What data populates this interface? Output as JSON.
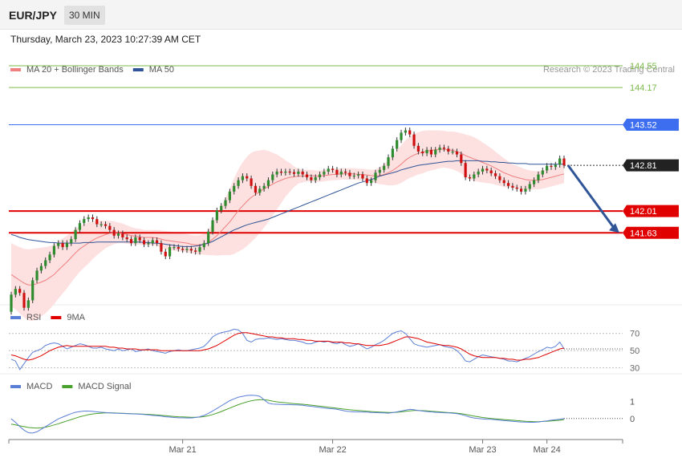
{
  "header": {
    "symbol": "EUR/JPY",
    "timeframe": "30 MIN",
    "datetime": "Thursday, March 23, 2023 10:27:39 AM CET"
  },
  "credit": "Research © 2023 Trading Central",
  "colors": {
    "bull": "#2e8b2e",
    "bear": "#d01010",
    "ma20": "#f08080",
    "band": "#fde0e0",
    "ma50": "#2f5597",
    "support": "#e00000",
    "resistance": "#3d6ef0",
    "target": "#7cbb4a",
    "rsi": "#5b7fd6",
    "rsi_ma": "#e00000",
    "macd": "#5b7fd6",
    "macd_signal": "#4aa02c",
    "arrow": "#2f5597",
    "current_label": "#222222"
  },
  "chart_data": [
    {
      "type": "candlestick",
      "legend": [
        {
          "name": "MA 20 + Bollinger Bands",
          "color_key": "ma20"
        },
        {
          "name": "MA 50",
          "color_key": "ma50"
        }
      ],
      "ylim": [
        140.4,
        144.9
      ],
      "price_levels": [
        {
          "value": 144.55,
          "label": "144.55",
          "kind": "target"
        },
        {
          "value": 144.17,
          "label": "144.17",
          "kind": "target"
        },
        {
          "value": 143.52,
          "label": "143.52",
          "kind": "resistance"
        },
        {
          "value": 142.81,
          "label": "142.81",
          "kind": "current"
        },
        {
          "value": 142.01,
          "label": "142.01",
          "kind": "support"
        },
        {
          "value": 141.63,
          "label": "141.63",
          "kind": "support"
        }
      ],
      "forecast_arrow": {
        "from": 142.81,
        "to": 141.63
      },
      "close": [
        140.55,
        140.65,
        140.58,
        140.32,
        140.45,
        140.8,
        140.97,
        141.05,
        141.15,
        141.25,
        141.4,
        141.45,
        141.38,
        141.45,
        141.52,
        141.68,
        141.8,
        141.87,
        141.9,
        141.87,
        141.78,
        141.78,
        141.75,
        141.68,
        141.58,
        141.62,
        141.55,
        141.52,
        141.45,
        141.55,
        141.5,
        141.43,
        141.45,
        141.5,
        141.45,
        141.3,
        141.22,
        141.38,
        141.38,
        141.35,
        141.33,
        141.35,
        141.32,
        141.3,
        141.38,
        141.45,
        141.65,
        141.85,
        142.02,
        142.1,
        142.2,
        142.35,
        142.45,
        142.55,
        142.62,
        142.58,
        142.45,
        142.33,
        142.4,
        142.45,
        142.55,
        142.65,
        142.7,
        142.68,
        142.7,
        142.69,
        142.66,
        142.7,
        142.65,
        142.6,
        142.55,
        142.6,
        142.65,
        142.7,
        142.75,
        142.73,
        142.65,
        142.7,
        142.68,
        142.62,
        142.63,
        142.65,
        142.58,
        142.5,
        142.55,
        142.68,
        142.73,
        142.8,
        142.95,
        143.1,
        143.25,
        143.38,
        143.42,
        143.35,
        143.15,
        143.05,
        143.02,
        143.08,
        143.0,
        143.08,
        143.12,
        143.1,
        143.05,
        143.05,
        143.0,
        142.85,
        142.6,
        142.58,
        142.65,
        142.7,
        142.75,
        142.72,
        142.67,
        142.62,
        142.55,
        142.5,
        142.45,
        142.42,
        142.4,
        142.35,
        142.4,
        142.48,
        142.55,
        142.65,
        142.72,
        142.8,
        142.78,
        142.82,
        142.93,
        142.81
      ],
      "ma20": [
        140.9,
        140.85,
        140.8,
        140.75,
        140.72,
        140.72,
        140.74,
        140.77,
        140.8,
        140.85,
        140.9,
        140.98,
        141.05,
        141.12,
        141.2,
        141.28,
        141.35,
        141.4,
        141.45,
        141.5,
        141.54,
        141.57,
        141.6,
        141.62,
        141.63,
        141.63,
        141.62,
        141.6,
        141.58,
        141.57,
        141.56,
        141.55,
        141.55,
        141.55,
        141.54,
        141.52,
        141.5,
        141.49,
        141.48,
        141.47,
        141.46,
        141.45,
        141.43,
        141.42,
        141.42,
        141.43,
        141.46,
        141.52,
        141.58,
        141.66,
        141.74,
        141.82,
        141.92,
        142.02,
        142.1,
        142.18,
        142.25,
        142.3,
        142.35,
        142.4,
        142.44,
        142.48,
        142.52,
        142.55,
        142.58,
        142.6,
        142.61,
        142.62,
        142.62,
        142.63,
        142.63,
        142.62,
        142.62,
        142.63,
        142.64,
        142.65,
        142.65,
        142.66,
        142.66,
        142.66,
        142.66,
        142.65,
        142.65,
        142.64,
        142.63,
        142.62,
        142.63,
        142.65,
        142.68,
        142.72,
        142.77,
        142.83,
        142.9,
        142.95,
        142.99,
        143.02,
        143.04,
        143.06,
        143.07,
        143.08,
        143.09,
        143.09,
        143.08,
        143.07,
        143.05,
        143.02,
        142.98,
        142.95,
        142.92,
        142.89,
        142.86,
        142.83,
        142.8,
        142.76,
        142.72,
        142.68,
        142.65,
        142.62,
        142.6,
        142.58,
        142.56,
        142.55,
        142.55,
        142.55,
        142.56,
        142.58,
        142.6,
        142.62,
        142.64,
        142.66
      ],
      "bb_width": [
        0.55,
        0.56,
        0.58,
        0.6,
        0.62,
        0.63,
        0.62,
        0.6,
        0.58,
        0.55,
        0.52,
        0.5,
        0.48,
        0.46,
        0.44,
        0.42,
        0.4,
        0.38,
        0.36,
        0.33,
        0.3,
        0.27,
        0.24,
        0.22,
        0.2,
        0.18,
        0.17,
        0.16,
        0.15,
        0.14,
        0.14,
        0.13,
        0.13,
        0.13,
        0.14,
        0.15,
        0.16,
        0.16,
        0.16,
        0.16,
        0.16,
        0.16,
        0.16,
        0.16,
        0.17,
        0.18,
        0.22,
        0.28,
        0.35,
        0.42,
        0.5,
        0.58,
        0.66,
        0.72,
        0.76,
        0.78,
        0.78,
        0.76,
        0.72,
        0.68,
        0.62,
        0.55,
        0.48,
        0.4,
        0.32,
        0.25,
        0.18,
        0.13,
        0.11,
        0.1,
        0.1,
        0.1,
        0.1,
        0.1,
        0.1,
        0.1,
        0.1,
        0.1,
        0.1,
        0.1,
        0.1,
        0.1,
        0.1,
        0.1,
        0.1,
        0.12,
        0.15,
        0.18,
        0.22,
        0.26,
        0.3,
        0.33,
        0.35,
        0.36,
        0.37,
        0.37,
        0.37,
        0.36,
        0.35,
        0.34,
        0.33,
        0.32,
        0.32,
        0.33,
        0.34,
        0.35,
        0.37,
        0.38,
        0.38,
        0.37,
        0.35,
        0.33,
        0.31,
        0.29,
        0.27,
        0.25,
        0.23,
        0.21,
        0.2,
        0.19,
        0.18,
        0.17,
        0.16,
        0.16,
        0.16,
        0.16,
        0.16,
        0.16,
        0.16,
        0.16
      ],
      "ma50": [
        141.6,
        141.58,
        141.55,
        141.53,
        141.51,
        141.5,
        141.49,
        141.48,
        141.47,
        141.46,
        141.46,
        141.45,
        141.45,
        141.45,
        141.45,
        141.45,
        141.45,
        141.46,
        141.46,
        141.46,
        141.47,
        141.47,
        141.47,
        141.47,
        141.47,
        141.47,
        141.47,
        141.47,
        141.47,
        141.47,
        141.47,
        141.46,
        141.46,
        141.45,
        141.45,
        141.44,
        141.43,
        141.42,
        141.41,
        141.4,
        141.39,
        141.39,
        141.39,
        141.4,
        141.41,
        141.43,
        141.45,
        141.48,
        141.52,
        141.56,
        141.6,
        141.64,
        141.68,
        141.71,
        141.74,
        141.77,
        141.79,
        141.81,
        141.83,
        141.85,
        141.87,
        141.9,
        141.93,
        141.96,
        141.99,
        142.02,
        142.05,
        142.08,
        142.11,
        142.14,
        142.17,
        142.2,
        142.23,
        142.26,
        142.29,
        142.32,
        142.35,
        142.38,
        142.41,
        142.44,
        142.47,
        142.5,
        142.52,
        142.54,
        142.56,
        142.59,
        142.62,
        142.64,
        142.66,
        142.68,
        142.7,
        142.73,
        142.75,
        142.77,
        142.79,
        142.81,
        142.82,
        142.83,
        142.84,
        142.85,
        142.86,
        142.87,
        142.88,
        142.88,
        142.89,
        142.89,
        142.89,
        142.89,
        142.89,
        142.89,
        142.88,
        142.88,
        142.87,
        142.87,
        142.86,
        142.86,
        142.85,
        142.85,
        142.84,
        142.84,
        142.84,
        142.83,
        142.83,
        142.83,
        142.83,
        142.83,
        142.83,
        142.83,
        142.83,
        142.83
      ]
    },
    {
      "type": "line",
      "legend": [
        {
          "name": "RSI",
          "color_key": "rsi"
        },
        {
          "name": "9MA",
          "color_key": "rsi_ma"
        }
      ],
      "ylim": [
        25,
        80
      ],
      "reference_levels": [
        70,
        50,
        30
      ],
      "series": [
        {
          "name": "RSI",
          "values": [
            40,
            38,
            28,
            35,
            42,
            48,
            50,
            52,
            56,
            58,
            59,
            58,
            55,
            52,
            54,
            56,
            58,
            57,
            55,
            53,
            53,
            54,
            52,
            51,
            50,
            52,
            50,
            51,
            52,
            49,
            50,
            51,
            52,
            50,
            49,
            48,
            47,
            49,
            50,
            51,
            50,
            50,
            51,
            52,
            53,
            55,
            60,
            66,
            69,
            71,
            72,
            73,
            75,
            74,
            70,
            62,
            60,
            63,
            64,
            64,
            65,
            64,
            63,
            64,
            63,
            62,
            62,
            61,
            60,
            58,
            58,
            60,
            61,
            60,
            61,
            59,
            58,
            60,
            57,
            55,
            56,
            58,
            55,
            52,
            54,
            57,
            59,
            62,
            66,
            70,
            72,
            73,
            70,
            64,
            58,
            56,
            55,
            54,
            55,
            56,
            57,
            55,
            54,
            53,
            50,
            45,
            38,
            37,
            40,
            43,
            45,
            44,
            43,
            42,
            41,
            40,
            38,
            38,
            37,
            39,
            41,
            43,
            46,
            49,
            51,
            54,
            53,
            55,
            60,
            52
          ]
        },
        {
          "name": "9MA",
          "values": [
            45,
            44,
            42,
            40,
            39,
            40,
            42,
            44,
            47,
            50,
            52,
            54,
            55,
            56,
            55,
            55,
            55,
            55,
            55,
            55,
            55,
            55,
            55,
            54,
            54,
            53,
            53,
            52,
            52,
            52,
            51,
            51,
            51,
            51,
            51,
            50,
            50,
            50,
            50,
            50,
            50,
            50,
            50,
            50,
            50,
            51,
            52,
            54,
            56,
            59,
            62,
            65,
            68,
            70,
            71,
            71,
            70,
            69,
            68,
            67,
            66,
            66,
            65,
            65,
            64,
            64,
            64,
            63,
            63,
            62,
            62,
            61,
            61,
            61,
            61,
            60,
            60,
            60,
            59,
            59,
            58,
            58,
            57,
            56,
            56,
            56,
            56,
            57,
            58,
            60,
            62,
            64,
            66,
            66,
            65,
            64,
            62,
            60,
            59,
            58,
            57,
            56,
            56,
            55,
            54,
            52,
            49,
            46,
            44,
            43,
            42,
            42,
            42,
            42,
            41,
            41,
            40,
            40,
            39,
            39,
            40,
            40,
            41,
            42,
            44,
            46,
            48,
            50,
            52,
            53
          ]
        }
      ]
    },
    {
      "type": "line",
      "legend": [
        {
          "name": "MACD",
          "color_key": "macd"
        },
        {
          "name": "MACD Signal",
          "color_key": "macd_signal"
        }
      ],
      "ylim": [
        -1.1,
        1.95
      ],
      "tick_labels": [
        {
          "value": 1,
          "label": "1"
        },
        {
          "value": 0,
          "label": "0"
        }
      ],
      "series": [
        {
          "name": "MACD",
          "values": [
            0.0,
            -0.2,
            -0.45,
            -0.65,
            -0.8,
            -0.82,
            -0.75,
            -0.6,
            -0.45,
            -0.3,
            -0.15,
            0.0,
            0.1,
            0.2,
            0.3,
            0.38,
            0.42,
            0.45,
            0.45,
            0.43,
            0.4,
            0.38,
            0.36,
            0.34,
            0.33,
            0.32,
            0.31,
            0.3,
            0.29,
            0.28,
            0.27,
            0.25,
            0.23,
            0.2,
            0.18,
            0.16,
            0.12,
            0.1,
            0.08,
            0.06,
            0.06,
            0.05,
            0.05,
            0.08,
            0.12,
            0.2,
            0.32,
            0.45,
            0.6,
            0.75,
            0.9,
            1.05,
            1.15,
            1.25,
            1.3,
            1.35,
            1.36,
            1.35,
            1.3,
            1.1,
            0.9,
            0.85,
            0.84,
            0.83,
            0.82,
            0.82,
            0.81,
            0.8,
            0.78,
            0.75,
            0.72,
            0.69,
            0.66,
            0.63,
            0.6,
            0.58,
            0.55,
            0.5,
            0.45,
            0.42,
            0.4,
            0.4,
            0.39,
            0.39,
            0.37,
            0.36,
            0.35,
            0.34,
            0.33,
            0.36,
            0.4,
            0.45,
            0.5,
            0.55,
            0.52,
            0.48,
            0.45,
            0.42,
            0.4,
            0.38,
            0.37,
            0.35,
            0.34,
            0.33,
            0.3,
            0.25,
            0.18,
            0.1,
            0.05,
            0.02,
            0.0,
            -0.02,
            -0.03,
            -0.05,
            -0.08,
            -0.1,
            -0.12,
            -0.14,
            -0.16,
            -0.18,
            -0.19,
            -0.2,
            -0.2,
            -0.18,
            -0.15,
            -0.12,
            -0.08,
            -0.05,
            -0.03,
            0.02
          ]
        },
        {
          "name": "MACD Signal",
          "values": [
            -0.3,
            -0.35,
            -0.4,
            -0.45,
            -0.5,
            -0.52,
            -0.53,
            -0.52,
            -0.48,
            -0.42,
            -0.35,
            -0.28,
            -0.2,
            -0.12,
            -0.04,
            0.04,
            0.12,
            0.18,
            0.24,
            0.28,
            0.31,
            0.33,
            0.34,
            0.34,
            0.34,
            0.33,
            0.32,
            0.31,
            0.3,
            0.29,
            0.28,
            0.27,
            0.26,
            0.24,
            0.22,
            0.2,
            0.18,
            0.16,
            0.14,
            0.12,
            0.11,
            0.1,
            0.09,
            0.09,
            0.1,
            0.13,
            0.18,
            0.25,
            0.33,
            0.42,
            0.52,
            0.62,
            0.72,
            0.82,
            0.9,
            0.98,
            1.04,
            1.08,
            1.1,
            1.1,
            1.07,
            1.02,
            0.98,
            0.95,
            0.93,
            0.9,
            0.88,
            0.86,
            0.84,
            0.82,
            0.79,
            0.76,
            0.73,
            0.7,
            0.67,
            0.64,
            0.61,
            0.58,
            0.55,
            0.52,
            0.5,
            0.48,
            0.46,
            0.44,
            0.42,
            0.4,
            0.39,
            0.38,
            0.37,
            0.37,
            0.38,
            0.4,
            0.43,
            0.46,
            0.48,
            0.48,
            0.47,
            0.46,
            0.44,
            0.42,
            0.4,
            0.38,
            0.36,
            0.35,
            0.33,
            0.3,
            0.26,
            0.21,
            0.16,
            0.12,
            0.08,
            0.05,
            0.02,
            0.0,
            -0.02,
            -0.04,
            -0.06,
            -0.08,
            -0.1,
            -0.12,
            -0.14,
            -0.15,
            -0.16,
            -0.16,
            -0.15,
            -0.14,
            -0.12,
            -0.1,
            -0.08,
            -0.05
          ]
        }
      ]
    }
  ],
  "x_axis": {
    "ticks": [
      {
        "index": 40,
        "label": "Mar 21"
      },
      {
        "index": 75,
        "label": "Mar 22"
      },
      {
        "index": 110,
        "label": "Mar 23"
      },
      {
        "index": 125,
        "label": "Mar 24"
      }
    ]
  }
}
